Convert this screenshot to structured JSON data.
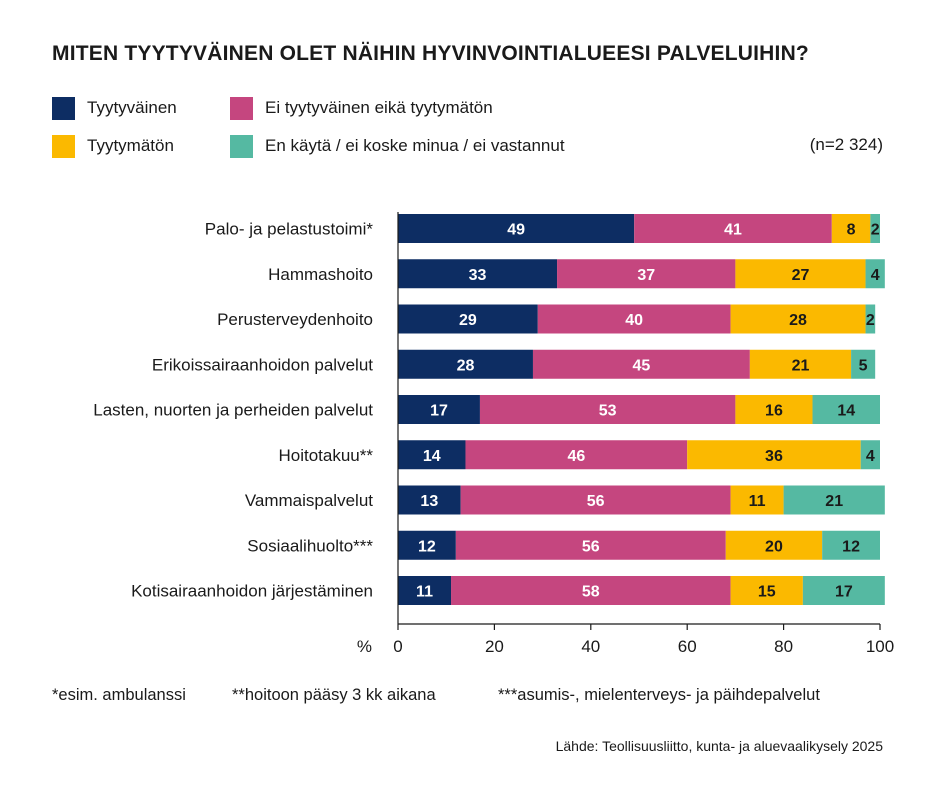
{
  "chart_data": {
    "type": "bar",
    "orientation": "horizontal",
    "stacked": true,
    "title": "MITEN TYYTYVÄINEN OLET NÄIHIN HYVINVOINTIALUEESI PALVELUIHIN?",
    "sample_size_label": "(n=2 324)",
    "xlabel": "%",
    "xlim": [
      0,
      100
    ],
    "x_ticks": [
      "0",
      "20",
      "40",
      "60",
      "80",
      "100"
    ],
    "grid": false,
    "legend_position": "top",
    "categories": [
      "Palo- ja pelastustoimi*",
      "Hammashoito",
      "Perusterveydenhoito",
      "Erikoissairaanhoidon palvelut",
      "Lasten, nuorten ja perheiden palvelut",
      "Hoitotakuu**",
      "Vammaispalvelut",
      "Sosiaalihuolto***",
      "Kotisairaanhoidon järjestäminen"
    ],
    "series": [
      {
        "name": "Tyytyväinen",
        "color": "#0d2d63",
        "label_color": "#ffffff",
        "values": [
          49,
          33,
          29,
          28,
          17,
          14,
          13,
          12,
          11
        ]
      },
      {
        "name": "Ei tyytyväinen eikä tyytymätön",
        "color": "#c5467f",
        "label_color": "#ffffff",
        "values": [
          41,
          37,
          40,
          45,
          53,
          46,
          56,
          56,
          58
        ]
      },
      {
        "name": "Tyytymätön",
        "color": "#fbb900",
        "label_color": "#1a1a1a",
        "values": [
          8,
          27,
          28,
          21,
          16,
          36,
          11,
          20,
          15
        ]
      },
      {
        "name": "En käytä / ei koske minua / ei vastannut",
        "color": "#55b9a2",
        "label_color": "#1a1a1a",
        "values": [
          2,
          4,
          2,
          5,
          14,
          4,
          21,
          12,
          17
        ]
      }
    ]
  },
  "footnotes": [
    "*esim. ambulanssi",
    "**hoitoon pääsy 3 kk aikana",
    "***asumis-, mielenterveys- ja päihdepalvelut"
  ],
  "source": "Lähde: Teollisuusliitto, kunta- ja aluevaalikysely 2025"
}
